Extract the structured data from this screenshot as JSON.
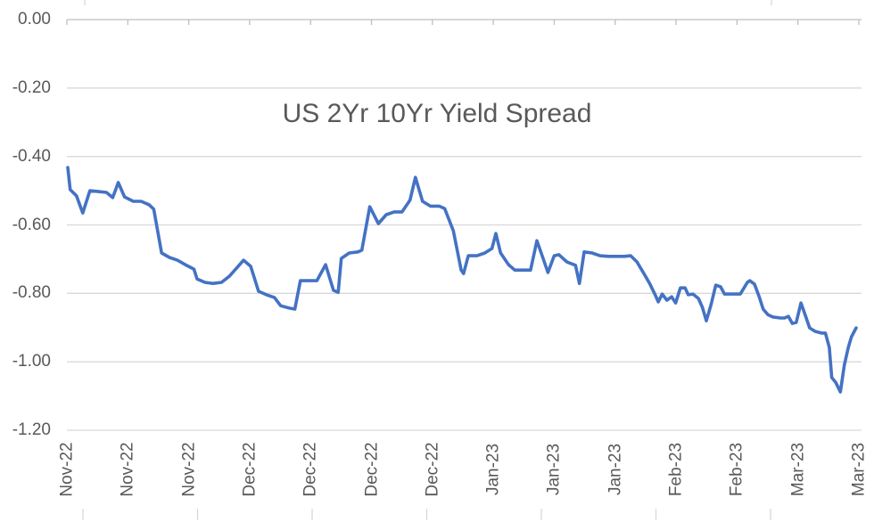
{
  "chart_data": {
    "type": "line",
    "title": "US 2Yr 10Yr Yield Spread",
    "xlabel": "",
    "ylabel": "",
    "ylim": [
      -1.2,
      0.0
    ],
    "y_tick_step": 0.2,
    "grid": "horizontal",
    "legend": "none",
    "y_tick_labels": [
      "0.00",
      "-0.20",
      "-0.40",
      "-0.60",
      "-0.80",
      "-1.00",
      "-1.20"
    ],
    "x_tick_labels": [
      "Nov-22",
      "Nov-22",
      "Nov-22",
      "Dec-22",
      "Dec-22",
      "Dec-22",
      "Dec-22",
      "Jan-23",
      "Jan-23",
      "Jan-23",
      "Feb-23",
      "Feb-23",
      "Mar-23",
      "Mar-23"
    ],
    "series": [
      {
        "name": "US 2Yr 10Yr Yield Spread",
        "color": "#4472C4",
        "points": [
          [
            0.0,
            -0.432
          ],
          [
            0.003,
            -0.497
          ],
          [
            0.011,
            -0.515
          ],
          [
            0.019,
            -0.565
          ],
          [
            0.028,
            -0.5
          ],
          [
            0.038,
            -0.502
          ],
          [
            0.049,
            -0.505
          ],
          [
            0.057,
            -0.52
          ],
          [
            0.064,
            -0.476
          ],
          [
            0.072,
            -0.518
          ],
          [
            0.083,
            -0.531
          ],
          [
            0.093,
            -0.531
          ],
          [
            0.103,
            -0.541
          ],
          [
            0.109,
            -0.554
          ],
          [
            0.119,
            -0.682
          ],
          [
            0.129,
            -0.695
          ],
          [
            0.139,
            -0.703
          ],
          [
            0.149,
            -0.716
          ],
          [
            0.16,
            -0.729
          ],
          [
            0.164,
            -0.758
          ],
          [
            0.174,
            -0.768
          ],
          [
            0.184,
            -0.771
          ],
          [
            0.195,
            -0.768
          ],
          [
            0.205,
            -0.75
          ],
          [
            0.215,
            -0.724
          ],
          [
            0.223,
            -0.703
          ],
          [
            0.232,
            -0.721
          ],
          [
            0.242,
            -0.794
          ],
          [
            0.252,
            -0.804
          ],
          [
            0.262,
            -0.812
          ],
          [
            0.27,
            -0.836
          ],
          [
            0.281,
            -0.843
          ],
          [
            0.288,
            -0.846
          ],
          [
            0.295,
            -0.763
          ],
          [
            0.305,
            -0.763
          ],
          [
            0.316,
            -0.763
          ],
          [
            0.327,
            -0.716
          ],
          [
            0.337,
            -0.791
          ],
          [
            0.343,
            -0.797
          ],
          [
            0.347,
            -0.698
          ],
          [
            0.357,
            -0.682
          ],
          [
            0.368,
            -0.679
          ],
          [
            0.373,
            -0.674
          ],
          [
            0.383,
            -0.547
          ],
          [
            0.394,
            -0.596
          ],
          [
            0.404,
            -0.57
          ],
          [
            0.414,
            -0.562
          ],
          [
            0.424,
            -0.562
          ],
          [
            0.434,
            -0.528
          ],
          [
            0.441,
            -0.461
          ],
          [
            0.45,
            -0.531
          ],
          [
            0.46,
            -0.545
          ],
          [
            0.471,
            -0.545
          ],
          [
            0.478,
            -0.552
          ],
          [
            0.489,
            -0.617
          ],
          [
            0.499,
            -0.732
          ],
          [
            0.502,
            -0.742
          ],
          [
            0.508,
            -0.69
          ],
          [
            0.519,
            -0.69
          ],
          [
            0.529,
            -0.682
          ],
          [
            0.538,
            -0.669
          ],
          [
            0.543,
            -0.625
          ],
          [
            0.549,
            -0.682
          ],
          [
            0.559,
            -0.716
          ],
          [
            0.567,
            -0.732
          ],
          [
            0.577,
            -0.732
          ],
          [
            0.587,
            -0.732
          ],
          [
            0.595,
            -0.646
          ],
          [
            0.602,
            -0.692
          ],
          [
            0.609,
            -0.739
          ],
          [
            0.617,
            -0.69
          ],
          [
            0.623,
            -0.687
          ],
          [
            0.633,
            -0.708
          ],
          [
            0.644,
            -0.718
          ],
          [
            0.649,
            -0.771
          ],
          [
            0.655,
            -0.679
          ],
          [
            0.665,
            -0.682
          ],
          [
            0.675,
            -0.69
          ],
          [
            0.686,
            -0.692
          ],
          [
            0.696,
            -0.692
          ],
          [
            0.706,
            -0.692
          ],
          [
            0.714,
            -0.69
          ],
          [
            0.722,
            -0.708
          ],
          [
            0.73,
            -0.739
          ],
          [
            0.738,
            -0.771
          ],
          [
            0.745,
            -0.804
          ],
          [
            0.749,
            -0.825
          ],
          [
            0.754,
            -0.802
          ],
          [
            0.76,
            -0.82
          ],
          [
            0.766,
            -0.81
          ],
          [
            0.771,
            -0.828
          ],
          [
            0.777,
            -0.784
          ],
          [
            0.783,
            -0.784
          ],
          [
            0.787,
            -0.804
          ],
          [
            0.793,
            -0.802
          ],
          [
            0.8,
            -0.815
          ],
          [
            0.805,
            -0.841
          ],
          [
            0.81,
            -0.88
          ],
          [
            0.816,
            -0.833
          ],
          [
            0.822,
            -0.776
          ],
          [
            0.828,
            -0.781
          ],
          [
            0.833,
            -0.802
          ],
          [
            0.843,
            -0.802
          ],
          [
            0.853,
            -0.802
          ],
          [
            0.862,
            -0.768
          ],
          [
            0.865,
            -0.763
          ],
          [
            0.871,
            -0.773
          ],
          [
            0.877,
            -0.81
          ],
          [
            0.882,
            -0.846
          ],
          [
            0.888,
            -0.862
          ],
          [
            0.894,
            -0.869
          ],
          [
            0.904,
            -0.872
          ],
          [
            0.909,
            -0.872
          ],
          [
            0.914,
            -0.867
          ],
          [
            0.919,
            -0.888
          ],
          [
            0.924,
            -0.885
          ],
          [
            0.93,
            -0.828
          ],
          [
            0.936,
            -0.867
          ],
          [
            0.941,
            -0.901
          ],
          [
            0.948,
            -0.911
          ],
          [
            0.956,
            -0.916
          ],
          [
            0.961,
            -0.916
          ],
          [
            0.966,
            -0.958
          ],
          [
            0.969,
            -1.046
          ],
          [
            0.974,
            -1.06
          ],
          [
            0.98,
            -1.088
          ],
          [
            0.985,
            -1.01
          ],
          [
            0.99,
            -0.958
          ],
          [
            0.994,
            -0.927
          ],
          [
            1.0,
            -0.901
          ]
        ]
      }
    ]
  },
  "colors": {
    "line": "#4472C4",
    "gridline": "#D9D9D9",
    "axis": "#BFBFBF",
    "text": "#595959"
  }
}
